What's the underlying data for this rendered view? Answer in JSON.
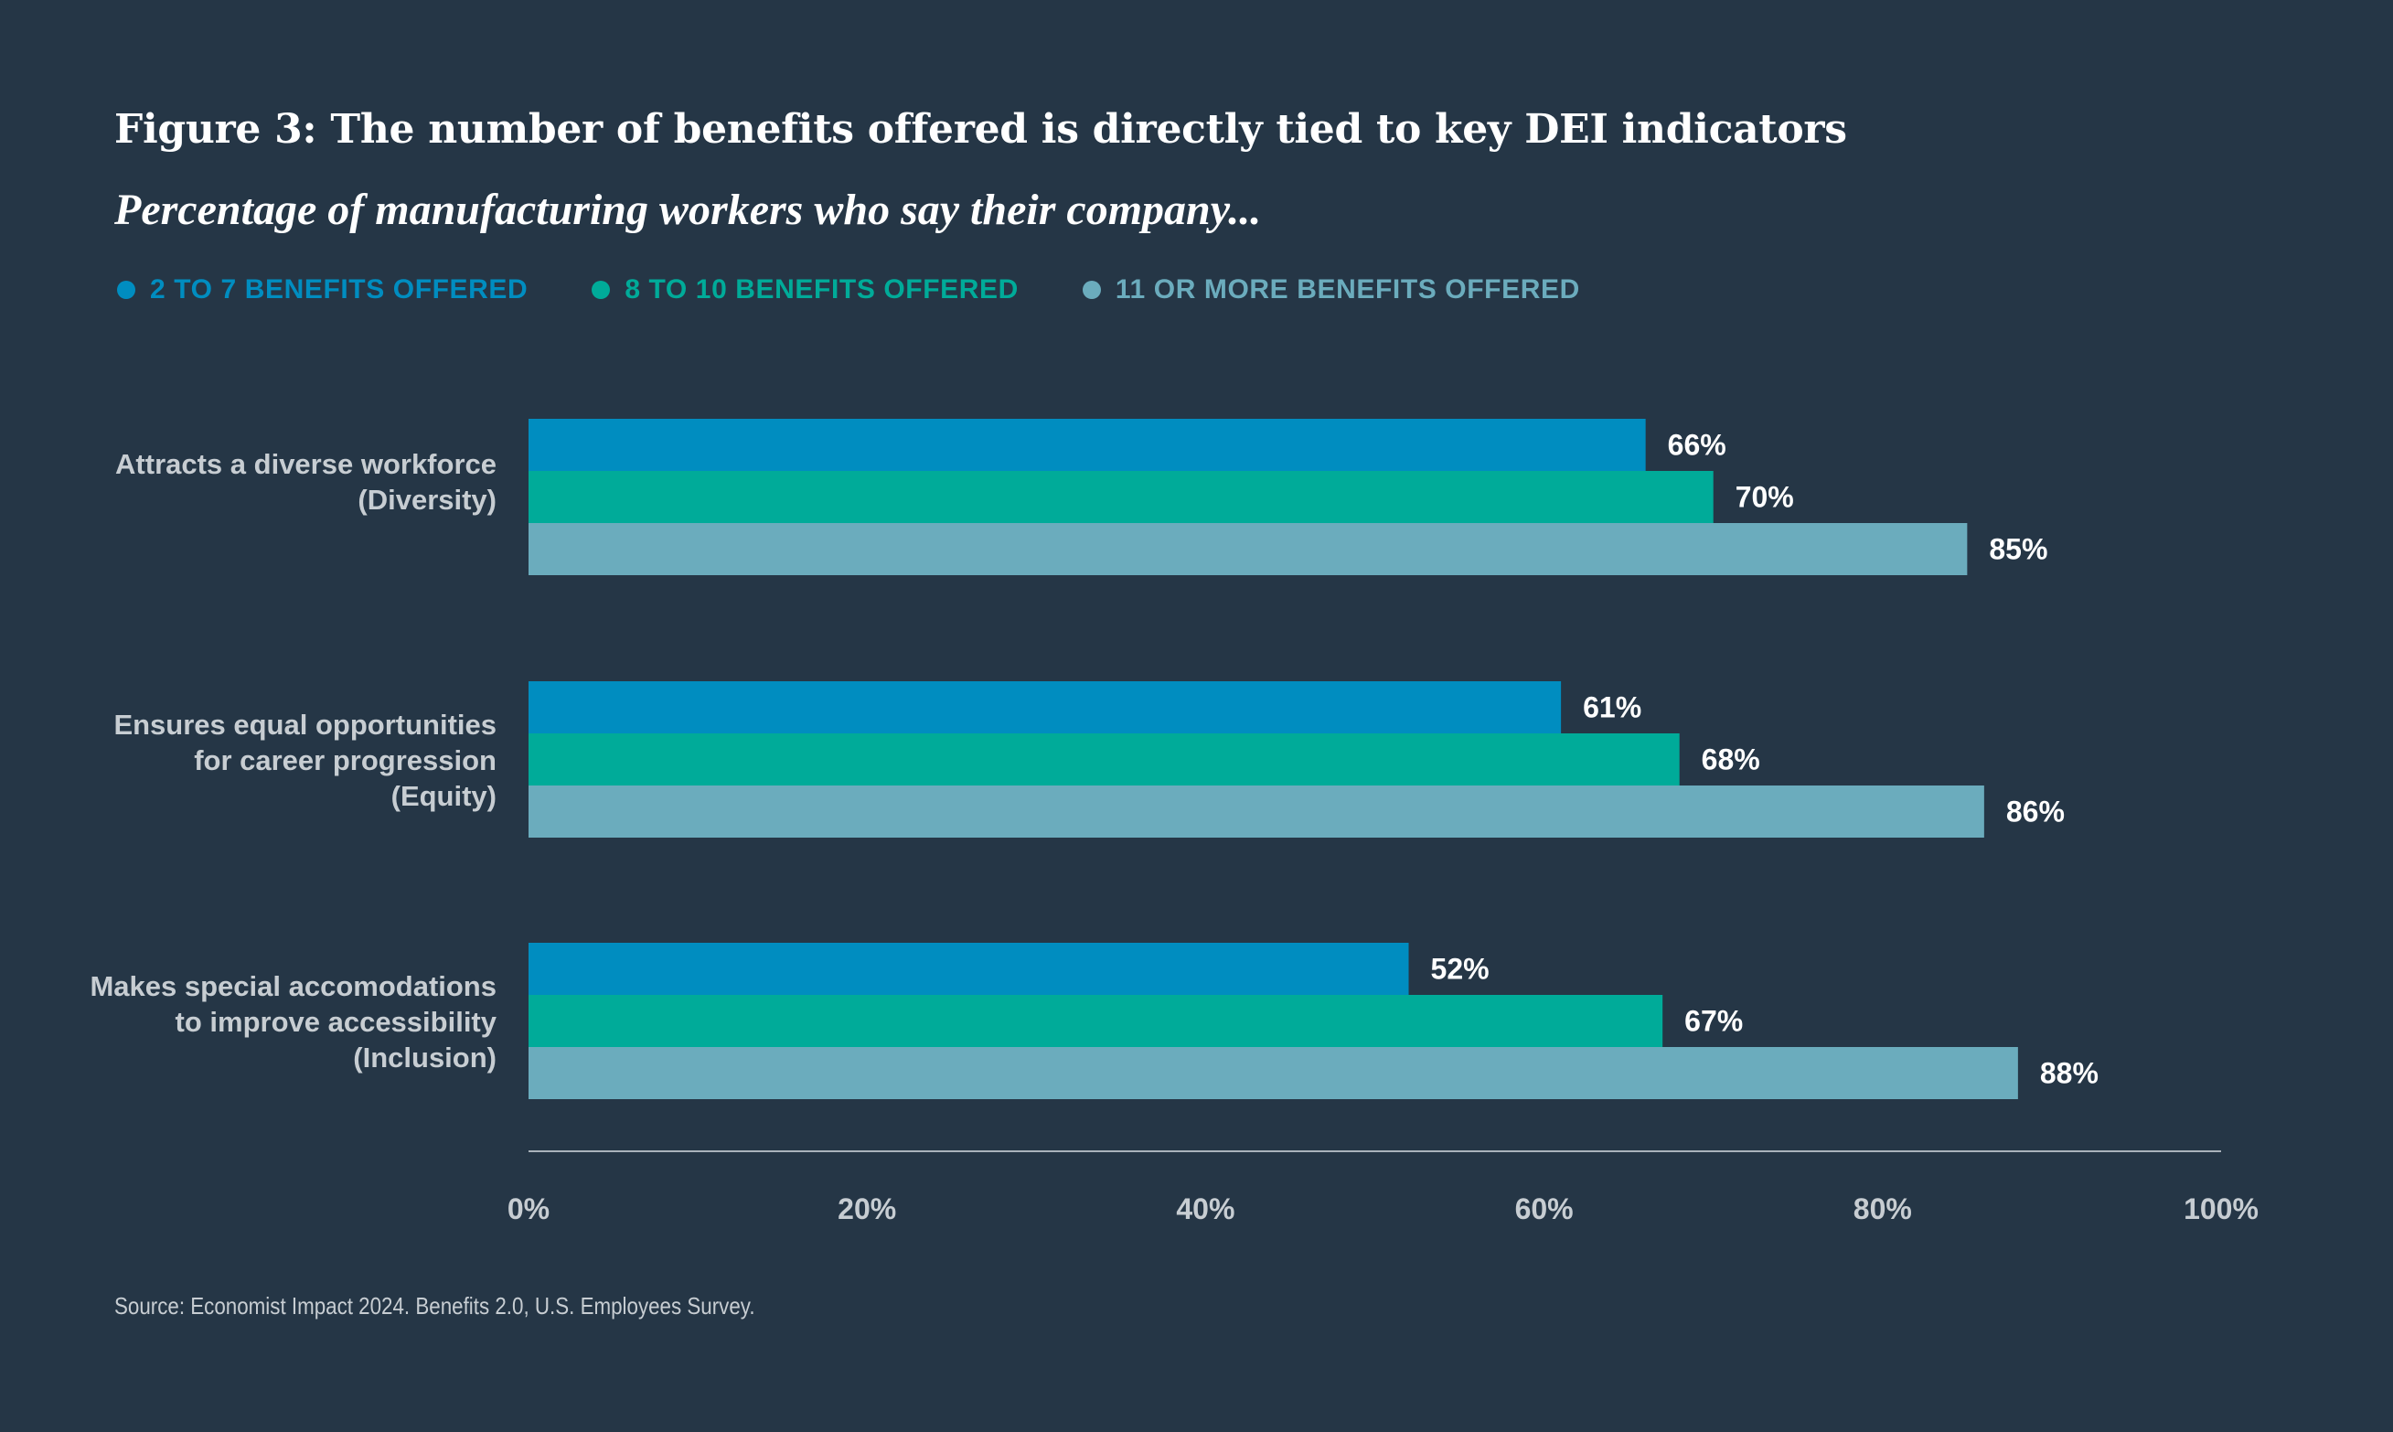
{
  "chart_data": {
    "type": "bar",
    "orientation": "horizontal",
    "title": "Figure 3: The number of benefits offered is directly tied to key DEI indicators",
    "subtitle": "Percentage of manufacturing workers who say their company...",
    "categories": [
      [
        "Attracts a diverse workforce",
        "(Diversity)"
      ],
      [
        "Ensures equal opportunities",
        "for career progression",
        "(Equity)"
      ],
      [
        "Makes special accomodations",
        "to improve accessibility",
        "(Inclusion)"
      ]
    ],
    "series": [
      {
        "name": "2 TO 7 BENEFITS OFFERED",
        "color": "#008dc0",
        "values": [
          66,
          61,
          52
        ]
      },
      {
        "name": "8 TO 10 BENEFITS OFFERED",
        "color": "#00ab99",
        "values": [
          70,
          68,
          67
        ]
      },
      {
        "name": "11 OR MORE BENEFITS OFFERED",
        "color": "#6bacbd",
        "values": [
          85,
          86,
          88
        ]
      }
    ],
    "value_suffix": "%",
    "xlim": [
      0,
      100
    ],
    "xticks": [
      0,
      20,
      40,
      60,
      80,
      100
    ],
    "xtick_labels": [
      "0%",
      "20%",
      "40%",
      "60%",
      "80%",
      "100%"
    ],
    "xlabel": "",
    "ylabel": "",
    "grid": false,
    "legend_position": "top-left",
    "source": "Source: Economist Impact 2024. Benefits 2.0, U.S. Employees Survey."
  },
  "colors": {
    "background": "#253646",
    "axis_line": "#aab3bb",
    "axis_text": "#c7cdd2",
    "value_text": "#ffffff"
  }
}
